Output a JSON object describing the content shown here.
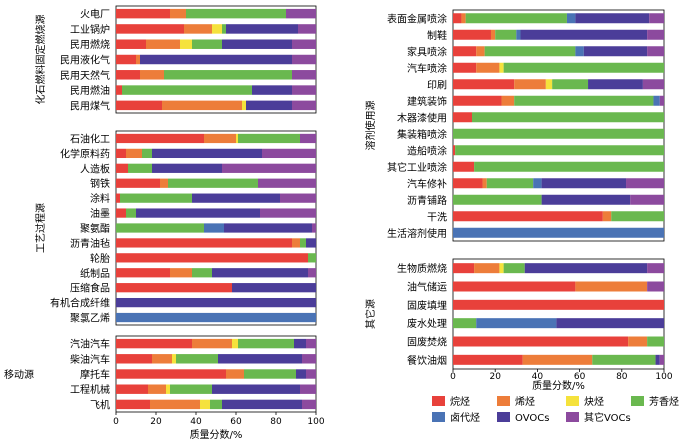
{
  "chart_data": {
    "type": "bar",
    "orientation": "horizontal",
    "stacked": true,
    "xlabel": "质量分数/%",
    "xlim": [
      0,
      100
    ],
    "xticks": [
      0,
      20,
      40,
      60,
      80,
      100
    ],
    "series_names": [
      "烷烃",
      "烯烃",
      "炔烃",
      "芳香烃",
      "卤代烃",
      "OVOCs",
      "其它VOCs"
    ],
    "colors": [
      "#e8413b",
      "#ed7d3a",
      "#f5e23c",
      "#6ab84f",
      "#4a73b5",
      "#4b3d99",
      "#8c4a9e"
    ],
    "panels": [
      {
        "group": "化石燃料固定燃烧源",
        "rows": [
          {
            "label": "火电厂",
            "values": [
              27,
              8,
              0,
              50,
              0,
              0,
              15
            ]
          },
          {
            "label": "工业锅炉",
            "values": [
              34,
              14,
              5,
              2,
              0,
              36,
              9
            ]
          },
          {
            "label": "民用燃烧",
            "values": [
              15,
              17,
              6,
              15,
              0,
              35,
              12
            ]
          },
          {
            "label": "民用液化气",
            "values": [
              10,
              2,
              0,
              0,
              0,
              76,
              12
            ]
          },
          {
            "label": "民用天然气",
            "values": [
              12,
              12,
              0,
              64,
              0,
              0,
              12
            ]
          },
          {
            "label": "民用燃油",
            "values": [
              3,
              0,
              0,
              65,
              0,
              20,
              12
            ]
          },
          {
            "label": "民用煤气",
            "values": [
              23,
              40,
              2,
              0,
              0,
              23,
              12
            ]
          }
        ]
      },
      {
        "group": "工艺过程源",
        "rows": [
          {
            "label": "石油化工",
            "values": [
              44,
              16,
              1,
              31,
              0,
              0,
              8
            ]
          },
          {
            "label": "化学原料药",
            "values": [
              5,
              8,
              0,
              5,
              0,
              55,
              27
            ]
          },
          {
            "label": "人造板",
            "values": [
              6,
              0,
              0,
              12,
              0,
              35,
              47
            ]
          },
          {
            "label": "钢铁",
            "values": [
              22,
              4,
              0,
              45,
              0,
              0,
              29
            ]
          },
          {
            "label": "涂料",
            "values": [
              2,
              0,
              0,
              36,
              0,
              44,
              18
            ]
          },
          {
            "label": "油墨",
            "values": [
              5,
              0,
              0,
              5,
              0,
              62,
              28
            ]
          },
          {
            "label": "聚氨酯",
            "values": [
              0,
              0,
              0,
              44,
              10,
              44,
              2
            ]
          },
          {
            "label": "沥青油毡",
            "values": [
              88,
              4,
              0,
              3,
              0,
              5,
              0
            ]
          },
          {
            "label": "轮胎",
            "values": [
              96,
              0,
              0,
              4,
              0,
              0,
              0
            ]
          },
          {
            "label": "纸制品",
            "values": [
              27,
              11,
              0,
              10,
              0,
              48,
              4
            ]
          },
          {
            "label": "压缩食品",
            "values": [
              58,
              0,
              0,
              0,
              0,
              42,
              0
            ]
          },
          {
            "label": "有机合成纤维",
            "values": [
              0,
              0,
              0,
              0,
              0,
              100,
              0
            ]
          },
          {
            "label": "聚氯乙烯",
            "values": [
              0,
              0,
              0,
              0,
              100,
              0,
              0
            ]
          }
        ]
      },
      {
        "group": "移动源",
        "rows": [
          {
            "label": "汽油汽车",
            "values": [
              38,
              20,
              3,
              28,
              0,
              6,
              5
            ]
          },
          {
            "label": "柴油汽车",
            "values": [
              18,
              10,
              2,
              21,
              0,
              42,
              7
            ]
          },
          {
            "label": "摩托车",
            "values": [
              55,
              9,
              0,
              26,
              0,
              5,
              5
            ]
          },
          {
            "label": "工程机械",
            "values": [
              16,
              9,
              2,
              21,
              0,
              44,
              8
            ]
          },
          {
            "label": "飞机",
            "values": [
              17,
              25,
              5,
              6,
              0,
              40,
              7
            ]
          }
        ]
      },
      {
        "group": "溶剂使用源",
        "rows": [
          {
            "label": "表面金属喷涂",
            "values": [
              4,
              2,
              0,
              48,
              4,
              35,
              7
            ]
          },
          {
            "label": "制鞋",
            "values": [
              18,
              2,
              0,
              10,
              2,
              60,
              8
            ]
          },
          {
            "label": "家具喷涂",
            "values": [
              11,
              4,
              0,
              43,
              4,
              30,
              8
            ]
          },
          {
            "label": "汽车喷涂",
            "values": [
              11,
              11,
              2,
              76,
              0,
              0,
              0
            ]
          },
          {
            "label": "印刷",
            "values": [
              29,
              15,
              3,
              17,
              0,
              26,
              10
            ]
          },
          {
            "label": "建筑装饰",
            "values": [
              23,
              6,
              0,
              66,
              3,
              0,
              2
            ]
          },
          {
            "label": "木器漆使用",
            "values": [
              9,
              0,
              0,
              91,
              0,
              0,
              0
            ]
          },
          {
            "label": "集装箱喷涂",
            "values": [
              0,
              0,
              0,
              100,
              0,
              0,
              0
            ]
          },
          {
            "label": "造船喷涂",
            "values": [
              1,
              0,
              0,
              99,
              0,
              0,
              0
            ]
          },
          {
            "label": "其它工业喷涂",
            "values": [
              10,
              0,
              0,
              90,
              0,
              0,
              0
            ]
          },
          {
            "label": "汽车修补",
            "values": [
              14,
              2,
              0,
              22,
              4,
              40,
              18
            ]
          },
          {
            "label": "沥青铺路",
            "values": [
              0,
              0,
              0,
              42,
              0,
              42,
              16
            ]
          },
          {
            "label": "干洗",
            "values": [
              71,
              4,
              0,
              25,
              0,
              0,
              0
            ]
          },
          {
            "label": "生活溶剂使用",
            "values": [
              0,
              0,
              0,
              0,
              100,
              0,
              0
            ]
          }
        ]
      },
      {
        "group": "其它源",
        "rows": [
          {
            "label": "生物质燃烧",
            "values": [
              10,
              12,
              2,
              10,
              0,
              58,
              8
            ]
          },
          {
            "label": "油气储运",
            "values": [
              58,
              34,
              0,
              0,
              0,
              0,
              8
            ]
          },
          {
            "label": "固废填埋",
            "values": [
              100,
              0,
              0,
              0,
              0,
              0,
              0
            ]
          },
          {
            "label": "废水处理",
            "values": [
              0,
              0,
              0,
              11,
              38,
              51,
              0
            ]
          },
          {
            "label": "固废焚烧",
            "values": [
              83,
              9,
              0,
              8,
              0,
              0,
              0
            ]
          },
          {
            "label": "餐饮油烟",
            "values": [
              33,
              33,
              0,
              30,
              0,
              2,
              2
            ]
          }
        ]
      }
    ]
  }
}
